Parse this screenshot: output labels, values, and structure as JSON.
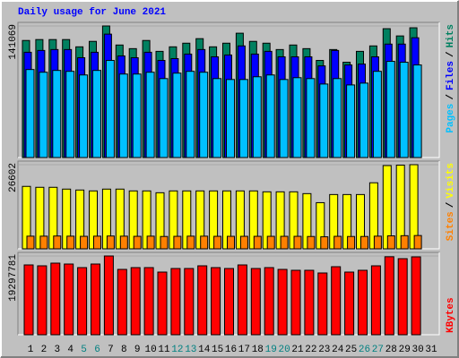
{
  "chart_data": [
    {
      "type": "bar",
      "title": "Daily usage for June 2021",
      "legend_separator": "/",
      "ylim": [
        0,
        141069
      ],
      "yticks": [
        141069
      ],
      "series": [
        {
          "name": "Hits",
          "color": "#008060",
          "values": [
            125500,
            126480,
            126480,
            126480,
            118690,
            124530,
            141069,
            120640,
            116750,
            125500,
            113830,
            118690,
            122590,
            127450,
            118690,
            122590,
            133290,
            124530,
            122590,
            115780,
            120640,
            116750,
            104100,
            115780,
            102150,
            113830,
            119670,
            138150,
            130370,
            139120,
            null
          ]
        },
        {
          "name": "Files",
          "color": "#0000ff",
          "values": [
            112860,
            114800,
            115780,
            115780,
            107020,
            112860,
            132310,
            108960,
            107020,
            112860,
            104100,
            106050,
            110910,
            115780,
            107990,
            109940,
            119670,
            110910,
            113830,
            107990,
            107990,
            107990,
            98260,
            114800,
            99240,
            100210,
            107990,
            121610,
            121610,
            128420,
            null
          ]
        },
        {
          "name": "Pages",
          "color": "#00c0ff",
          "values": [
            94370,
            91450,
            93400,
            92430,
            88530,
            93400,
            104100,
            89510,
            89510,
            91450,
            84640,
            90480,
            92430,
            91450,
            84640,
            83670,
            83670,
            86590,
            88530,
            83670,
            85620,
            84640,
            78800,
            84640,
            77830,
            79780,
            92430,
            103130,
            102150,
            99240,
            null
          ]
        }
      ]
    },
    {
      "type": "bar",
      "legend_separator": "/",
      "ylim": [
        0,
        26602
      ],
      "yticks": [
        26602
      ],
      "series": [
        {
          "name": "Visits",
          "color": "#ffff00",
          "values": [
            19740,
            19450,
            19450,
            18880,
            18590,
            18310,
            18880,
            18880,
            18310,
            18310,
            17730,
            18310,
            18310,
            18310,
            18310,
            18310,
            18310,
            18310,
            18020,
            18020,
            18020,
            17450,
            14590,
            17160,
            17160,
            17160,
            20880,
            26320,
            26450,
            26602,
            null
          ]
        },
        {
          "name": "Sites",
          "color": "#ff8000",
          "values": [
            4000,
            4000,
            4050,
            4000,
            3950,
            4000,
            4050,
            4000,
            3950,
            4000,
            3900,
            3950,
            4000,
            4000,
            3950,
            3950,
            3950,
            3950,
            3950,
            3950,
            3950,
            3900,
            3800,
            3950,
            3900,
            3900,
            4000,
            4100,
            4150,
            4200,
            null
          ]
        }
      ]
    },
    {
      "type": "bar",
      "ylim": [
        0,
        19297781
      ],
      "yticks": [
        19297781
      ],
      "categories": [
        "1",
        "2",
        "3",
        "4",
        "5",
        "6",
        "7",
        "8",
        "9",
        "10",
        "11",
        "12",
        "13",
        "14",
        "15",
        "16",
        "17",
        "18",
        "19",
        "20",
        "21",
        "22",
        "23",
        "24",
        "25",
        "26",
        "27",
        "28",
        "29",
        "30",
        "31"
      ],
      "category_colors": [
        "#000000",
        "#000000",
        "#000000",
        "#000000",
        "#008080",
        "#008080",
        "#000000",
        "#000000",
        "#000000",
        "#000000",
        "#000000",
        "#008080",
        "#008080",
        "#000000",
        "#000000",
        "#000000",
        "#000000",
        "#000000",
        "#008080",
        "#008080",
        "#000000",
        "#000000",
        "#000000",
        "#000000",
        "#000000",
        "#008080",
        "#008080",
        "#000000",
        "#000000",
        "#000000",
        "#000000"
      ],
      "series": [
        {
          "name": "KBytes",
          "color": "#ff0000",
          "values": [
            17105000,
            16886000,
            17543000,
            17324000,
            16447000,
            17324000,
            19297781,
            16008000,
            16447000,
            16447000,
            15351000,
            16228000,
            16228000,
            16886000,
            16447000,
            16228000,
            17105000,
            16228000,
            16447000,
            16008000,
            15789000,
            15789000,
            15131000,
            16666000,
            15351000,
            15789000,
            16886000,
            19110000,
            18640000,
            19078000,
            null
          ]
        }
      ]
    }
  ]
}
